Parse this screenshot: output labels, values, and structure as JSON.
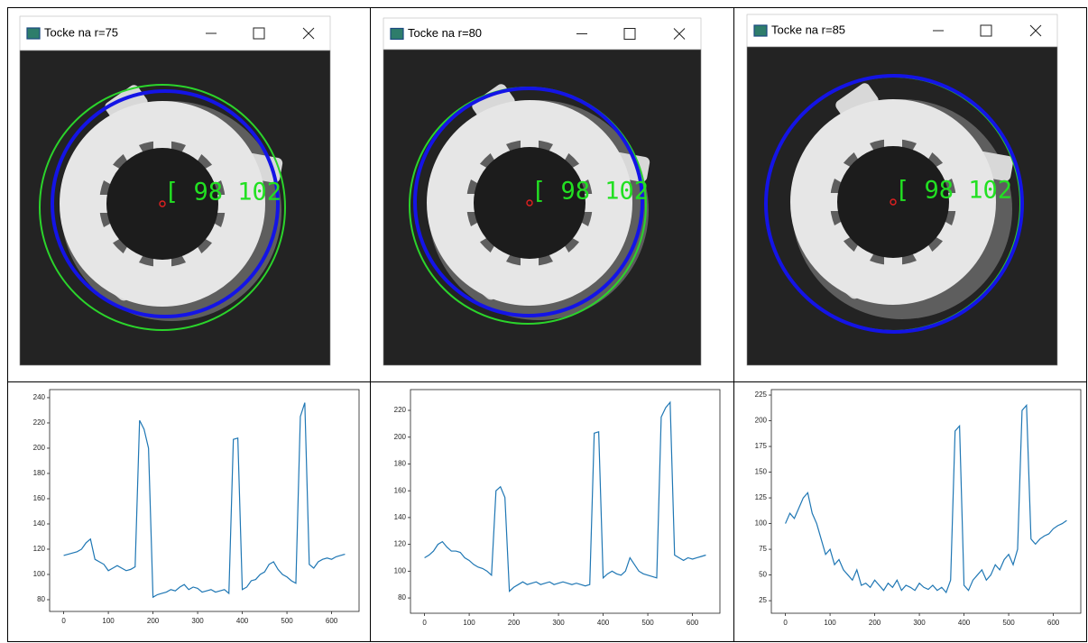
{
  "windows": [
    {
      "title": "Tocke na r=75",
      "overlay_label": "[ 98 102"
    },
    {
      "title": "Tocke na r=80",
      "overlay_label": "[ 98 102"
    },
    {
      "title": "Tocke na r=85",
      "overlay_label": "[ 98 102"
    }
  ],
  "chart_data": [
    {
      "type": "line",
      "color": "#1f77b4",
      "x": [
        0,
        10,
        20,
        30,
        40,
        50,
        60,
        70,
        80,
        90,
        100,
        110,
        120,
        130,
        140,
        150,
        160,
        170,
        180,
        190,
        200,
        210,
        220,
        230,
        240,
        250,
        260,
        270,
        280,
        290,
        300,
        310,
        320,
        330,
        340,
        350,
        360,
        370,
        380,
        390,
        400,
        410,
        420,
        430,
        440,
        450,
        460,
        470,
        480,
        490,
        500,
        510,
        520,
        530,
        540,
        550,
        560,
        570,
        580,
        590,
        600,
        610,
        620,
        630
      ],
      "values": [
        115,
        116,
        117,
        118,
        120,
        125,
        128,
        112,
        110,
        108,
        103,
        105,
        107,
        105,
        103,
        104,
        106,
        222,
        215,
        200,
        82,
        84,
        85,
        86,
        88,
        87,
        90,
        92,
        88,
        90,
        89,
        86,
        87,
        88,
        86,
        87,
        88,
        85,
        207,
        208,
        88,
        90,
        95,
        96,
        100,
        102,
        108,
        110,
        104,
        100,
        98,
        95,
        93,
        225,
        236,
        108,
        105,
        110,
        112,
        113,
        112,
        114,
        115,
        116
      ],
      "xlim": [
        -31.5,
        661.5
      ],
      "ylim": [
        70.7,
        246.4
      ],
      "xticks": [
        0,
        100,
        200,
        300,
        400,
        500,
        600
      ],
      "yticks": [
        80,
        100,
        120,
        140,
        160,
        180,
        200,
        220,
        240
      ]
    },
    {
      "type": "line",
      "color": "#1f77b4",
      "x": [
        0,
        10,
        20,
        30,
        40,
        50,
        60,
        70,
        80,
        90,
        100,
        110,
        120,
        130,
        140,
        150,
        160,
        170,
        180,
        190,
        200,
        210,
        220,
        230,
        240,
        250,
        260,
        270,
        280,
        290,
        300,
        310,
        320,
        330,
        340,
        350,
        360,
        370,
        380,
        390,
        400,
        410,
        420,
        430,
        440,
        450,
        460,
        470,
        480,
        490,
        500,
        510,
        520,
        530,
        540,
        550,
        560,
        570,
        580,
        590,
        600,
        610,
        620,
        630
      ],
      "values": [
        110,
        112,
        115,
        120,
        122,
        118,
        115,
        115,
        114,
        110,
        108,
        105,
        103,
        102,
        100,
        97,
        160,
        163,
        155,
        85,
        88,
        90,
        92,
        90,
        91,
        92,
        90,
        91,
        92,
        90,
        91,
        92,
        91,
        90,
        91,
        90,
        89,
        90,
        203,
        204,
        95,
        98,
        100,
        98,
        97,
        100,
        110,
        105,
        100,
        98,
        97,
        96,
        95,
        215,
        222,
        226,
        112,
        110,
        108,
        110,
        109,
        110,
        111,
        112
      ],
      "xlim": [
        -31.5,
        661.5
      ],
      "ylim": [
        68.6,
        235.5
      ],
      "xticks": [
        0,
        100,
        200,
        300,
        400,
        500,
        600
      ],
      "yticks": [
        80,
        100,
        120,
        140,
        160,
        180,
        200,
        220
      ]
    },
    {
      "type": "line",
      "color": "#1f77b4",
      "x": [
        0,
        10,
        20,
        30,
        40,
        50,
        60,
        70,
        80,
        90,
        100,
        110,
        120,
        130,
        140,
        150,
        160,
        170,
        180,
        190,
        200,
        210,
        220,
        230,
        240,
        250,
        260,
        270,
        280,
        290,
        300,
        310,
        320,
        330,
        340,
        350,
        360,
        370,
        380,
        390,
        400,
        410,
        420,
        430,
        440,
        450,
        460,
        470,
        480,
        490,
        500,
        510,
        520,
        530,
        540,
        550,
        560,
        570,
        580,
        590,
        600,
        610,
        620,
        630
      ],
      "values": [
        100,
        110,
        105,
        115,
        125,
        130,
        110,
        100,
        85,
        70,
        75,
        60,
        65,
        55,
        50,
        45,
        55,
        40,
        42,
        38,
        45,
        40,
        35,
        42,
        38,
        45,
        35,
        40,
        38,
        35,
        42,
        38,
        36,
        40,
        35,
        38,
        33,
        45,
        190,
        195,
        40,
        35,
        45,
        50,
        55,
        45,
        50,
        60,
        55,
        65,
        70,
        60,
        75,
        210,
        215,
        85,
        80,
        85,
        88,
        90,
        95,
        98,
        100,
        103
      ],
      "xlim": [
        -31.5,
        661.5
      ],
      "ylim": [
        12.8,
        230.3
      ],
      "xticks": [
        0,
        100,
        200,
        300,
        400,
        500,
        600
      ],
      "yticks": [
        25,
        50,
        75,
        100,
        125,
        150,
        175,
        200,
        225
      ]
    }
  ]
}
